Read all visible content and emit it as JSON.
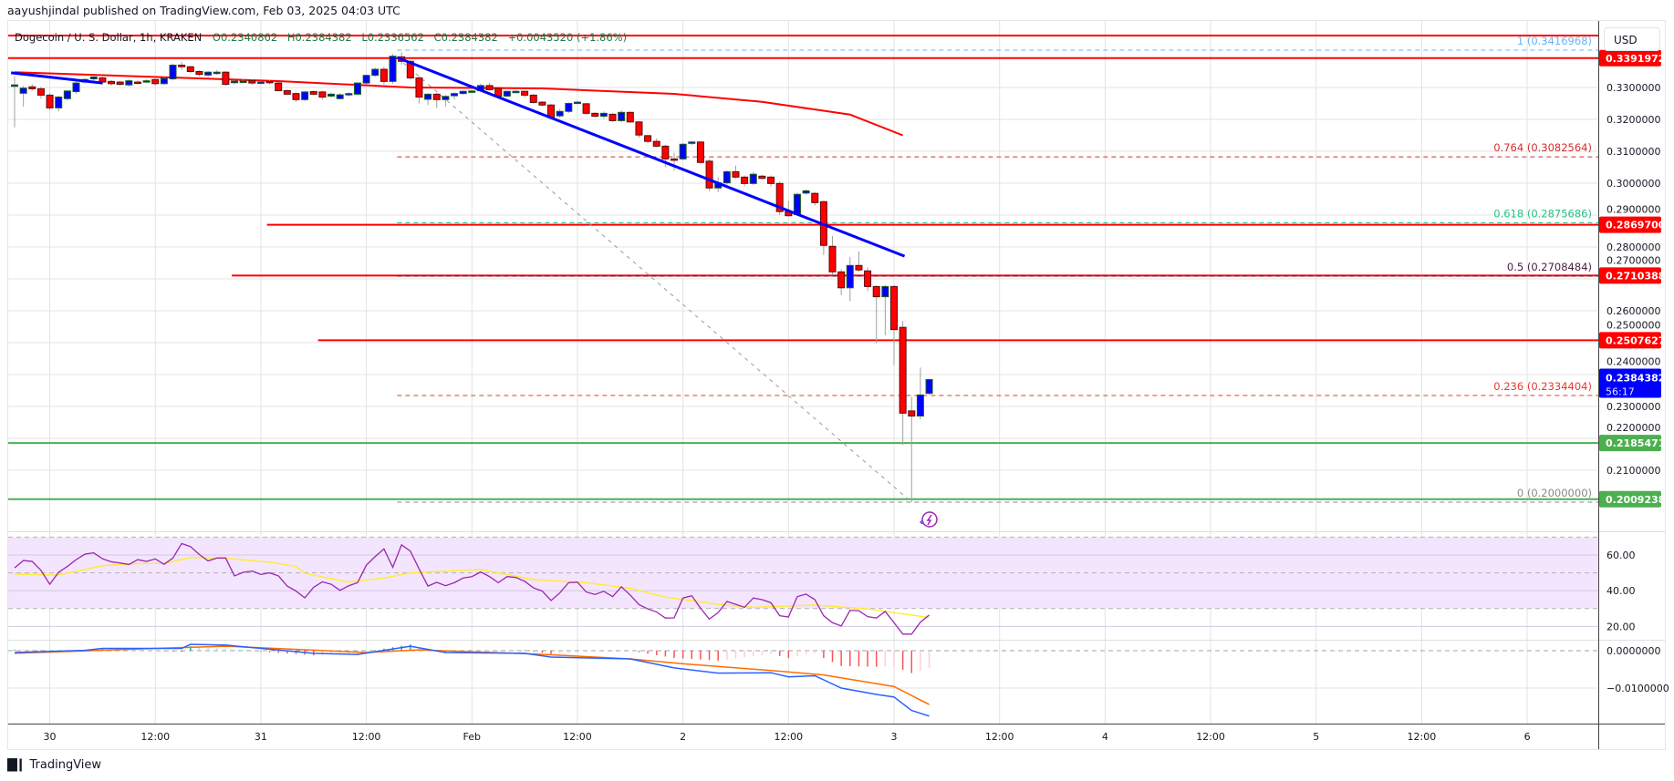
{
  "header": {
    "published": "aayushjindal published on TradingView.com, Feb 03, 2025 04:03 UTC"
  },
  "legend": {
    "symbol": "Dogecoin / U. S. Dollar, 1h, KRAKEN",
    "open": "O0.2340862",
    "high": "H0.2384382",
    "low": "L0.2336562",
    "close": "C0.2384382",
    "change": "+0.0043520 (+1.86%)"
  },
  "currency": "USD",
  "countdown": "56:17",
  "brand": "TradingView",
  "colors": {
    "up_candle": "#0000ff",
    "down_candle": "#ff0000",
    "sma": "#ff0000",
    "trendline": "#0000ff",
    "resistance": "#ff0000",
    "support": "#4caf50",
    "rsi": "#9c27b0",
    "rsi_ma": "#ffeb3b",
    "macd": "#2962ff",
    "signal": "#ff6d00"
  },
  "chart_data": {
    "type": "candlestick",
    "interval": "1h",
    "price_axis": {
      "ticks": [
        "0.3300000",
        "0.3200000",
        "0.3100000",
        "0.3000000",
        "0.2900000",
        "0.2800000",
        "0.2700000",
        "0.2600000",
        "0.2500000",
        "0.2400000",
        "0.2300000",
        "0.2200000",
        "0.2100000"
      ]
    },
    "time_axis": {
      "labels": [
        "30",
        "12:00",
        "31",
        "12:00",
        "Feb",
        "12:00",
        "2",
        "12:00",
        "3",
        "12:00",
        "4",
        "12:00",
        "5",
        "12:00",
        "6"
      ]
    },
    "candles_ohlc": [
      [
        0.3308,
        0.3336,
        0.3175,
        0.3308
      ],
      [
        0.3282,
        0.3305,
        0.324,
        0.3298
      ],
      [
        0.3302,
        0.331,
        0.329,
        0.3296
      ],
      [
        0.3296,
        0.3302,
        0.3265,
        0.3276
      ],
      [
        0.3276,
        0.3282,
        0.323,
        0.3236
      ],
      [
        0.3236,
        0.3274,
        0.3225,
        0.327
      ],
      [
        0.3265,
        0.3292,
        0.326,
        0.3289
      ],
      [
        0.3287,
        0.332,
        0.328,
        0.3314
      ],
      [
        0.3317,
        0.333,
        0.3312,
        0.3325
      ],
      [
        0.3327,
        0.3336,
        0.3322,
        0.3333
      ],
      [
        0.333,
        0.3334,
        0.331,
        0.3317
      ],
      [
        0.3319,
        0.3323,
        0.3305,
        0.3312
      ],
      [
        0.3317,
        0.3321,
        0.3305,
        0.331
      ],
      [
        0.3308,
        0.3325,
        0.3303,
        0.3321
      ],
      [
        0.3317,
        0.3322,
        0.331,
        0.3315
      ],
      [
        0.3319,
        0.3325,
        0.3315,
        0.3321
      ],
      [
        0.3325,
        0.3328,
        0.3305,
        0.3312
      ],
      [
        0.3312,
        0.3333,
        0.3308,
        0.3329
      ],
      [
        0.3327,
        0.3375,
        0.3322,
        0.337
      ],
      [
        0.337,
        0.338,
        0.3355,
        0.3365
      ],
      [
        0.3365,
        0.3368,
        0.3345,
        0.335
      ],
      [
        0.335,
        0.3354,
        0.3335,
        0.3341
      ],
      [
        0.3339,
        0.3352,
        0.3333,
        0.3348
      ],
      [
        0.3348,
        0.3355,
        0.334,
        0.3348
      ],
      [
        0.3348,
        0.3352,
        0.3305,
        0.331
      ],
      [
        0.3315,
        0.3324,
        0.331,
        0.332
      ],
      [
        0.332,
        0.3326,
        0.3314,
        0.332
      ],
      [
        0.3321,
        0.3325,
        0.3308,
        0.3314
      ],
      [
        0.3315,
        0.332,
        0.331,
        0.3317
      ],
      [
        0.3319,
        0.3323,
        0.331,
        0.3315
      ],
      [
        0.3314,
        0.3318,
        0.3288,
        0.329
      ],
      [
        0.329,
        0.3294,
        0.3275,
        0.3279
      ],
      [
        0.3281,
        0.3285,
        0.3255,
        0.3262
      ],
      [
        0.3262,
        0.3288,
        0.3258,
        0.3286
      ],
      [
        0.3287,
        0.329,
        0.3275,
        0.3279
      ],
      [
        0.3286,
        0.329,
        0.3262,
        0.327
      ],
      [
        0.3273,
        0.3284,
        0.3268,
        0.3279
      ],
      [
        0.3265,
        0.3282,
        0.3262,
        0.3277
      ],
      [
        0.3277,
        0.3285,
        0.3272,
        0.3281
      ],
      [
        0.3279,
        0.3316,
        0.3275,
        0.3314
      ],
      [
        0.3314,
        0.334,
        0.331,
        0.3338
      ],
      [
        0.3338,
        0.3362,
        0.3334,
        0.3357
      ],
      [
        0.3357,
        0.3365,
        0.331,
        0.3319
      ],
      [
        0.3319,
        0.3405,
        0.3312,
        0.3398
      ],
      [
        0.3396,
        0.341,
        0.3372,
        0.3382
      ],
      [
        0.3382,
        0.3385,
        0.3325,
        0.333
      ],
      [
        0.333,
        0.3335,
        0.325,
        0.327
      ],
      [
        0.3263,
        0.3282,
        0.3245,
        0.3279
      ],
      [
        0.3279,
        0.3283,
        0.3235,
        0.3262
      ],
      [
        0.3262,
        0.3276,
        0.324,
        0.3272
      ],
      [
        0.3274,
        0.3285,
        0.3262,
        0.3281
      ],
      [
        0.3281,
        0.329,
        0.3278,
        0.3288
      ],
      [
        0.3289,
        0.3292,
        0.3285,
        0.3289
      ],
      [
        0.329,
        0.3312,
        0.3287,
        0.3306
      ],
      [
        0.3306,
        0.3315,
        0.329,
        0.3293
      ],
      [
        0.3298,
        0.33,
        0.3265,
        0.3273
      ],
      [
        0.3273,
        0.329,
        0.327,
        0.3288
      ],
      [
        0.3288,
        0.3292,
        0.3284,
        0.3288
      ],
      [
        0.3288,
        0.329,
        0.3268,
        0.3276
      ],
      [
        0.3276,
        0.3279,
        0.325,
        0.3253
      ],
      [
        0.3254,
        0.3257,
        0.324,
        0.3245
      ],
      [
        0.3245,
        0.3248,
        0.3205,
        0.3207
      ],
      [
        0.3211,
        0.3232,
        0.3205,
        0.3225
      ],
      [
        0.3225,
        0.3253,
        0.322,
        0.325
      ],
      [
        0.3254,
        0.3258,
        0.325,
        0.3254
      ],
      [
        0.3249,
        0.3252,
        0.3215,
        0.3219
      ],
      [
        0.3219,
        0.3222,
        0.3205,
        0.321
      ],
      [
        0.321,
        0.3225,
        0.3202,
        0.3219
      ],
      [
        0.3216,
        0.322,
        0.3192,
        0.3196
      ],
      [
        0.3196,
        0.3228,
        0.3192,
        0.3222
      ],
      [
        0.3222,
        0.3225,
        0.3188,
        0.3192
      ],
      [
        0.3192,
        0.3195,
        0.3142,
        0.3151
      ],
      [
        0.3149,
        0.3152,
        0.3125,
        0.3131
      ],
      [
        0.3131,
        0.314,
        0.3112,
        0.3116
      ],
      [
        0.3116,
        0.312,
        0.305,
        0.3076
      ],
      [
        0.3076,
        0.3095,
        0.304,
        0.3074
      ],
      [
        0.3076,
        0.3126,
        0.3072,
        0.3122
      ],
      [
        0.3125,
        0.3132,
        0.312,
        0.3129
      ],
      [
        0.3129,
        0.3132,
        0.306,
        0.3065
      ],
      [
        0.3069,
        0.3075,
        0.2975,
        0.2985
      ],
      [
        0.2985,
        0.3018,
        0.2972,
        0.3001
      ],
      [
        0.3001,
        0.304,
        0.2995,
        0.3036
      ],
      [
        0.3036,
        0.3055,
        0.3015,
        0.3019
      ],
      [
        0.3019,
        0.3024,
        0.299,
        0.2999
      ],
      [
        0.2999,
        0.3035,
        0.2995,
        0.3028
      ],
      [
        0.3022,
        0.3026,
        0.3012,
        0.3015
      ],
      [
        0.3019,
        0.3024,
        0.299,
        0.2999
      ],
      [
        0.2999,
        0.3005,
        0.29,
        0.2911
      ],
      [
        0.2911,
        0.2944,
        0.2895,
        0.2898
      ],
      [
        0.2902,
        0.297,
        0.2898,
        0.2965
      ],
      [
        0.2969,
        0.298,
        0.2964,
        0.2976
      ],
      [
        0.2968,
        0.2973,
        0.293,
        0.2939
      ],
      [
        0.2942,
        0.2945,
        0.2775,
        0.2805
      ],
      [
        0.2802,
        0.2834,
        0.2712,
        0.2722
      ],
      [
        0.2722,
        0.273,
        0.2649,
        0.2672
      ],
      [
        0.2672,
        0.2769,
        0.263,
        0.2742
      ],
      [
        0.2742,
        0.2786,
        0.2722,
        0.2728
      ],
      [
        0.2725,
        0.2736,
        0.2662,
        0.2676
      ],
      [
        0.2676,
        0.268,
        0.2498,
        0.2644
      ],
      [
        0.2644,
        0.268,
        0.2523,
        0.2676
      ],
      [
        0.2676,
        0.268,
        0.243,
        0.2541
      ],
      [
        0.2548,
        0.2568,
        0.2179,
        0.2279
      ],
      [
        0.2286,
        0.233,
        0.2,
        0.227
      ],
      [
        0.227,
        0.2422,
        0.226,
        0.2336
      ],
      [
        0.2340862,
        0.2384382,
        0.2336562,
        0.2384382
      ]
    ],
    "sma": [
      [
        0,
        0.3348
      ],
      [
        30,
        0.332
      ],
      [
        45,
        0.33
      ],
      [
        60,
        0.3297
      ],
      [
        75,
        0.328
      ],
      [
        85,
        0.3255
      ],
      [
        95,
        0.3215
      ],
      [
        101,
        0.315
      ]
    ],
    "trendlines": [
      {
        "from": [
          43.5,
          0.3394
        ],
        "to": [
          101.2,
          0.2771
        ],
        "color": "#0000ff"
      },
      {
        "from": [
          -0.4,
          0.3346
        ],
        "to": [
          10,
          0.3314
        ],
        "color": "#0000ff"
      }
    ],
    "fib_diagonal": {
      "from": [
        43.5,
        0.3394
      ],
      "to": [
        102,
        0.2
      ]
    },
    "horizontal_levels": [
      {
        "value": 0.3463,
        "color": "#ff0000",
        "start": -1,
        "label": ""
      },
      {
        "value": 0.3391972,
        "color": "#ff0000",
        "start": -1,
        "label": "0.3391972"
      },
      {
        "value": 0.28697,
        "color": "#ff0000",
        "start": 28.7,
        "label": "0.2869700"
      },
      {
        "value": 0.2710388,
        "color": "#ff0000",
        "start": 24.7,
        "label": "0.2710388"
      },
      {
        "value": 0.2507627,
        "color": "#ff0000",
        "start": 34.5,
        "label": "0.2507627"
      },
      {
        "value": 0.2185471,
        "color": "#4caf50",
        "start": -1,
        "label": "0.2185471"
      },
      {
        "value": 0.2009238,
        "color": "#4caf50",
        "start": -1,
        "label": "0.2009238"
      }
    ],
    "fib_levels": [
      {
        "ratio": "1",
        "value": 0.3416968,
        "text": "1 (0.3416968)",
        "color": "#64b5f6"
      },
      {
        "ratio": "0.764",
        "value": 0.3082564,
        "text": "0.764 (0.3082564)",
        "color": "#d32f2f"
      },
      {
        "ratio": "0.618",
        "value": 0.2875686,
        "text": "0.618 (0.2875686)",
        "color": "#26c281"
      },
      {
        "ratio": "0.5",
        "value": 0.2708484,
        "text": "0.5 (0.2708484)",
        "color": "#4a2040"
      },
      {
        "ratio": "0.236",
        "value": 0.2334404,
        "text": "0.236 (0.2334404)",
        "color": "#e53935"
      },
      {
        "ratio": "0",
        "value": 0.2,
        "text": "0 (0.2000000)",
        "color": "#888888"
      }
    ],
    "last_price": {
      "value": 0.2384382,
      "label": "0.2384382",
      "color": "#0000ff"
    },
    "rsi": {
      "ticks": [
        "60.00",
        "40.00",
        "20.00"
      ],
      "band": [
        30,
        70
      ],
      "values": [
        52.8,
        56.9,
        56.4,
        51.4,
        43.6,
        50.3,
        53.6,
        57.4,
        60.5,
        61.2,
        57.9,
        56.2,
        55.5,
        54.7,
        57.4,
        56.4,
        57.8,
        54.8,
        58.3,
        66.4,
        64.7,
        60.3,
        56.7,
        58.3,
        58.3,
        48.3,
        50.3,
        51.0,
        49.1,
        50.0,
        48.3,
        42.6,
        39.8,
        36.0,
        41.9,
        45.0,
        43.6,
        40.2,
        42.8,
        44.5,
        54.3,
        59.1,
        63.4,
        53.1,
        65.7,
        62.2,
        52.2,
        42.6,
        44.7,
        42.8,
        44.5,
        47.1,
        47.9,
        50.5,
        47.9,
        44.5,
        47.9,
        47.4,
        45.3,
        41.6,
        39.8,
        34.5,
        38.8,
        44.5,
        44.8,
        39.3,
        37.9,
        39.7,
        36.7,
        42.2,
        37.6,
        32.2,
        29.8,
        28.1,
        24.7,
        24.8,
        35.9,
        37.2,
        30.2,
        24.1,
        27.8,
        34.0,
        32.4,
        30.7,
        35.9,
        35.0,
        33.3,
        26.0,
        25.3,
        36.7,
        38.1,
        35.0,
        26.0,
        22.1,
        20.3,
        29.0,
        28.8,
        25.5,
        24.7,
        28.4,
        22.1,
        15.7,
        15.7,
        22.4,
        26.4
      ],
      "ma": [
        [
          0,
          49.3
        ],
        [
          5,
          48.8
        ],
        [
          10,
          54
        ],
        [
          14,
          55.2
        ],
        [
          17,
          55.3
        ],
        [
          20,
          58.6
        ],
        [
          24,
          58.1
        ],
        [
          29,
          56
        ],
        [
          32,
          53.6
        ],
        [
          33,
          49.7
        ],
        [
          38,
          44.8
        ],
        [
          42,
          47.1
        ],
        [
          45,
          50
        ],
        [
          53,
          51.9
        ],
        [
          59,
          46.2
        ],
        [
          65,
          44.5
        ],
        [
          70,
          41.4
        ],
        [
          74,
          36.4
        ],
        [
          80,
          32.4
        ],
        [
          84,
          30.7
        ],
        [
          91,
          32
        ],
        [
          97,
          29.8
        ],
        [
          104,
          25
        ]
      ]
    },
    "macd": {
      "ticks": [
        "0.0000000",
        "−0.0100000"
      ],
      "macd_line": [
        [
          0,
          -0.0005
        ],
        [
          8,
          0.0001
        ],
        [
          10,
          0.0006
        ],
        [
          19,
          0.0006
        ],
        [
          20,
          0.0017
        ],
        [
          24,
          0.0015
        ],
        [
          34,
          -0.0007
        ],
        [
          39,
          -0.001
        ],
        [
          45,
          0.0012
        ],
        [
          49,
          -0.0005
        ],
        [
          58,
          -0.0007
        ],
        [
          61,
          -0.0017
        ],
        [
          70,
          -0.0022
        ],
        [
          75,
          -0.0046
        ],
        [
          80,
          -0.006
        ],
        [
          86,
          -0.0059
        ],
        [
          88,
          -0.007
        ],
        [
          91,
          -0.0067
        ],
        [
          94,
          -0.01
        ],
        [
          98,
          -0.0117
        ],
        [
          100,
          -0.0124
        ],
        [
          102,
          -0.016
        ],
        [
          104,
          -0.0175
        ]
      ],
      "signal_line": [
        [
          0,
          -0.0007
        ],
        [
          16,
          0.0006
        ],
        [
          24,
          0.0012
        ],
        [
          40,
          -0.0005
        ],
        [
          46,
          0.0002
        ],
        [
          58,
          -0.0008
        ],
        [
          61,
          -0.0011
        ],
        [
          70,
          -0.0022
        ],
        [
          76,
          -0.0035
        ],
        [
          86,
          -0.0053
        ],
        [
          92,
          -0.0065
        ],
        [
          100,
          -0.0096
        ],
        [
          104,
          -0.0144
        ]
      ]
    }
  }
}
